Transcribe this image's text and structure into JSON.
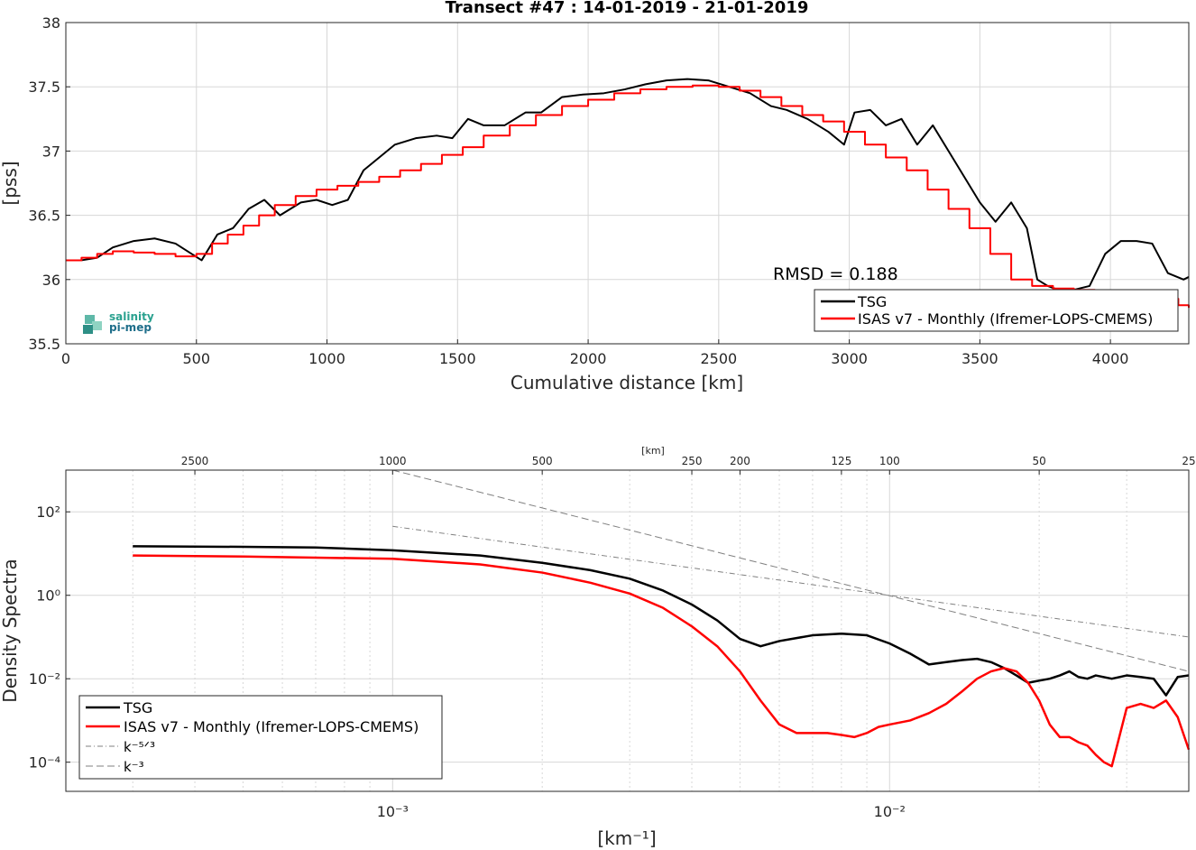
{
  "logo": {
    "line1": "salinity",
    "line2": "pi-mep"
  },
  "chart_data": [
    {
      "type": "line",
      "title": "Transect #47 : 14-01-2019 - 21-01-2019",
      "xlabel": "Cumulative distance [km]",
      "ylabel": "[pss]",
      "xlim": [
        0,
        4300
      ],
      "ylim": [
        35.5,
        38
      ],
      "xticks": [
        "0",
        "500",
        "1000",
        "1500",
        "2000",
        "2500",
        "3000",
        "3500",
        "4000"
      ],
      "yticks": [
        "35.5",
        "36",
        "36.5",
        "37",
        "37.5",
        "38"
      ],
      "grid": true,
      "annotation": "RMSD = 0.188",
      "legend": {
        "placement": "bottom-right",
        "entries": [
          "TSG",
          "ISAS v7 - Monthly (Ifremer-LOPS-CMEMS)"
        ]
      },
      "series": [
        {
          "name": "TSG",
          "color": "#000000",
          "x": [
            0,
            60,
            120,
            180,
            260,
            340,
            420,
            520,
            580,
            640,
            700,
            760,
            820,
            900,
            960,
            1020,
            1080,
            1140,
            1200,
            1260,
            1340,
            1420,
            1480,
            1540,
            1600,
            1680,
            1760,
            1820,
            1900,
            1980,
            2060,
            2140,
            2220,
            2300,
            2380,
            2460,
            2540,
            2620,
            2700,
            2760,
            2840,
            2920,
            2980,
            3020,
            3080,
            3140,
            3200,
            3260,
            3320,
            3380,
            3440,
            3500,
            3560,
            3620,
            3680,
            3720,
            3760,
            3800,
            3860,
            3920,
            3980,
            4040,
            4100,
            4160,
            4220,
            4280,
            4300
          ],
          "y": [
            36.15,
            36.15,
            36.17,
            36.25,
            36.3,
            36.32,
            36.28,
            36.15,
            36.35,
            36.4,
            36.55,
            36.62,
            36.5,
            36.6,
            36.62,
            36.58,
            36.62,
            36.85,
            36.95,
            37.05,
            37.1,
            37.12,
            37.1,
            37.25,
            37.2,
            37.2,
            37.3,
            37.3,
            37.42,
            37.44,
            37.45,
            37.48,
            37.52,
            37.55,
            37.56,
            37.55,
            37.5,
            37.45,
            37.35,
            37.32,
            37.25,
            37.15,
            37.05,
            37.3,
            37.32,
            37.2,
            37.25,
            37.05,
            37.2,
            37.0,
            36.8,
            36.6,
            36.45,
            36.6,
            36.4,
            36.0,
            35.95,
            35.92,
            35.92,
            35.95,
            36.2,
            36.3,
            36.3,
            36.28,
            36.05,
            36.0,
            36.02
          ]
        },
        {
          "name": "ISAS v7 - Monthly (Ifremer-LOPS-CMEMS)",
          "color": "#ff0000",
          "x": [
            0,
            60,
            120,
            180,
            260,
            340,
            420,
            500,
            560,
            620,
            680,
            740,
            800,
            880,
            960,
            1040,
            1120,
            1200,
            1280,
            1360,
            1440,
            1520,
            1600,
            1700,
            1800,
            1900,
            2000,
            2100,
            2200,
            2300,
            2400,
            2500,
            2580,
            2660,
            2740,
            2820,
            2900,
            2980,
            3060,
            3140,
            3220,
            3300,
            3380,
            3460,
            3540,
            3620,
            3700,
            3780,
            3860,
            3940,
            4020,
            4100,
            4180,
            4260,
            4300
          ],
          "y": [
            36.15,
            36.17,
            36.2,
            36.22,
            36.21,
            36.2,
            36.18,
            36.2,
            36.28,
            36.35,
            36.42,
            36.5,
            36.58,
            36.65,
            36.7,
            36.73,
            36.76,
            36.8,
            36.85,
            36.9,
            36.97,
            37.03,
            37.12,
            37.2,
            37.28,
            37.35,
            37.4,
            37.45,
            37.48,
            37.5,
            37.51,
            37.5,
            37.47,
            37.42,
            37.35,
            37.28,
            37.23,
            37.15,
            37.05,
            36.95,
            36.85,
            36.7,
            36.55,
            36.4,
            36.2,
            36.0,
            35.95,
            35.93,
            35.92,
            35.91,
            35.9,
            35.88,
            35.85,
            35.8,
            35.78
          ]
        }
      ]
    },
    {
      "type": "line",
      "title": "",
      "xlabel": "[km⁻¹]",
      "ylabel": "Density Spectra",
      "top_axis_label": "[km]",
      "top_ticks": [
        "2500",
        "1000",
        "500",
        "250",
        "200",
        "125",
        "100",
        "50",
        "25"
      ],
      "top_tick_km": [
        2500,
        1000,
        500,
        250,
        200,
        125,
        100,
        50,
        25
      ],
      "x_scale": "log",
      "y_scale": "log",
      "xlim": [
        0.00022,
        0.04
      ],
      "ylim": [
        2e-05,
        1000
      ],
      "xticks": [
        "10⁻³",
        "10⁻²"
      ],
      "yticks": [
        "10⁻⁴",
        "10⁻²",
        "10⁰",
        "10²"
      ],
      "grid": true,
      "legend": {
        "placement": "bottom-left",
        "entries": [
          "TSG",
          "ISAS v7 - Monthly (Ifremer-LOPS-CMEMS)",
          "k⁻⁵ᐟ³",
          "k⁻³"
        ]
      },
      "series": [
        {
          "name": "TSG",
          "color": "#000000",
          "x": [
            0.0003,
            0.0005,
            0.0007,
            0.001,
            0.0015,
            0.002,
            0.0025,
            0.003,
            0.0035,
            0.004,
            0.0045,
            0.005,
            0.0055,
            0.006,
            0.007,
            0.008,
            0.009,
            0.01,
            0.011,
            0.012,
            0.013,
            0.014,
            0.015,
            0.016,
            0.017,
            0.018,
            0.019,
            0.02,
            0.021,
            0.022,
            0.023,
            0.024,
            0.025,
            0.026,
            0.028,
            0.03,
            0.032,
            0.034,
            0.036,
            0.038,
            0.04
          ],
          "y": [
            15,
            14.5,
            14,
            12,
            9,
            6,
            4,
            2.5,
            1.3,
            0.6,
            0.25,
            0.09,
            0.06,
            0.08,
            0.11,
            0.12,
            0.11,
            0.07,
            0.04,
            0.022,
            0.025,
            0.028,
            0.03,
            0.025,
            0.018,
            0.012,
            0.008,
            0.009,
            0.01,
            0.012,
            0.015,
            0.011,
            0.01,
            0.012,
            0.01,
            0.012,
            0.011,
            0.01,
            0.004,
            0.011,
            0.012
          ]
        },
        {
          "name": "ISAS v7 - Monthly (Ifremer-LOPS-CMEMS)",
          "color": "#ff0000",
          "x": [
            0.0003,
            0.0005,
            0.0007,
            0.001,
            0.0015,
            0.002,
            0.0025,
            0.003,
            0.0035,
            0.004,
            0.0045,
            0.005,
            0.0055,
            0.006,
            0.0065,
            0.007,
            0.0075,
            0.008,
            0.0085,
            0.009,
            0.0095,
            0.01,
            0.011,
            0.012,
            0.013,
            0.014,
            0.015,
            0.016,
            0.017,
            0.018,
            0.019,
            0.02,
            0.021,
            0.022,
            0.023,
            0.024,
            0.025,
            0.026,
            0.027,
            0.028,
            0.03,
            0.032,
            0.034,
            0.036,
            0.038,
            0.04
          ],
          "y": [
            9,
            8.5,
            8,
            7.5,
            5.5,
            3.5,
            2,
            1.1,
            0.5,
            0.18,
            0.06,
            0.015,
            0.003,
            0.0008,
            0.0005,
            0.0005,
            0.0005,
            0.00045,
            0.0004,
            0.0005,
            0.0007,
            0.0008,
            0.001,
            0.0015,
            0.0025,
            0.005,
            0.01,
            0.015,
            0.018,
            0.015,
            0.008,
            0.003,
            0.0008,
            0.0004,
            0.0004,
            0.0003,
            0.00025,
            0.00015,
            0.0001,
            8e-05,
            0.002,
            0.0025,
            0.002,
            0.003,
            0.0012,
            0.0002
          ]
        },
        {
          "name": "k⁻⁵ᐟ³",
          "color": "#808080",
          "x": [
            0.001,
            0.04
          ],
          "y": [
            45,
            0.1
          ]
        },
        {
          "name": "k⁻³",
          "color": "#808080",
          "x": [
            0.001,
            0.04
          ],
          "y": [
            1000,
            0.015
          ]
        }
      ]
    }
  ]
}
